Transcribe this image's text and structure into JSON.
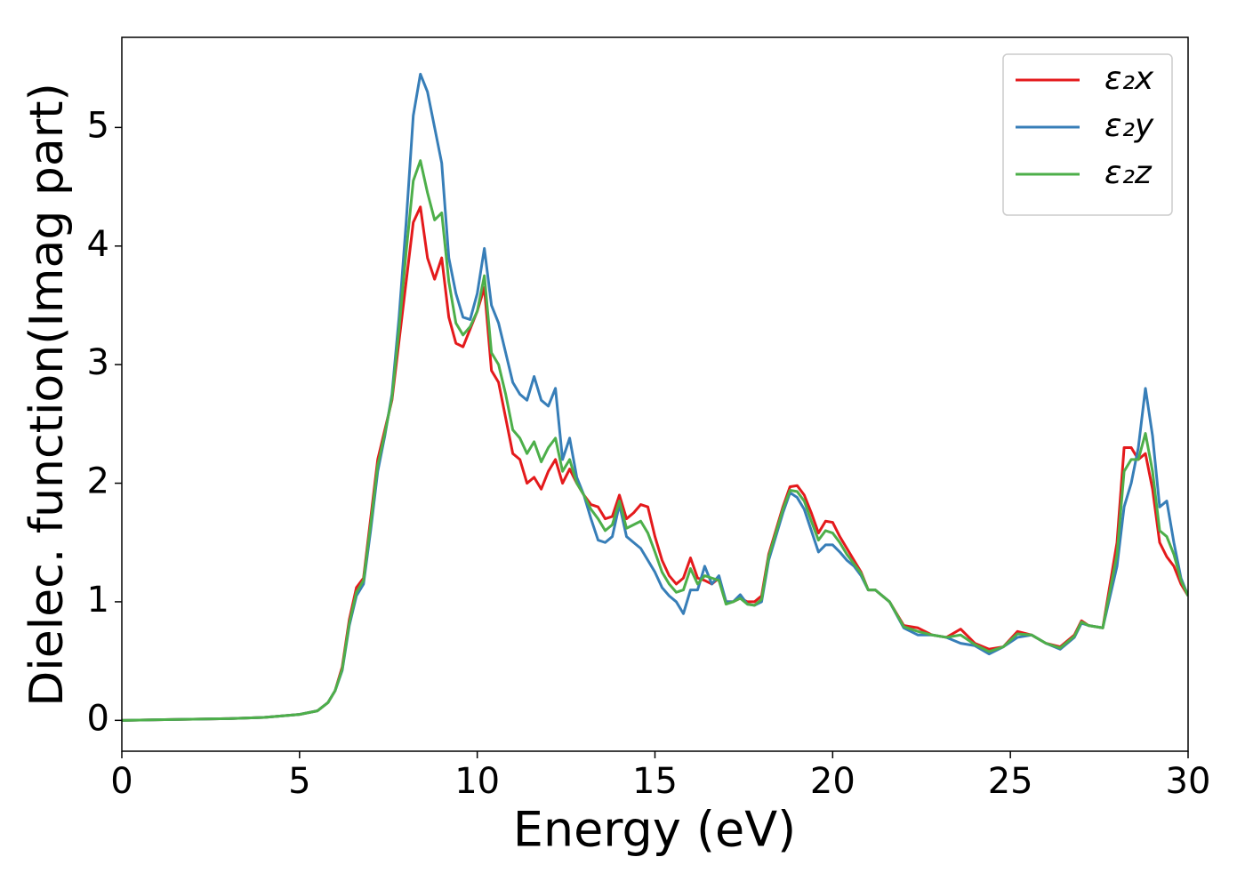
{
  "chart_data": {
    "type": "line",
    "xlabel": "Energy (eV)",
    "ylabel": "Dielec. function(Imag part)",
    "xlim": [
      0,
      30
    ],
    "xticks": [
      0,
      5,
      10,
      15,
      20,
      25,
      30
    ],
    "ylim": [
      -0.26,
      5.76
    ],
    "yticks": [
      0,
      1,
      2,
      3,
      4,
      5
    ],
    "grid": false,
    "legend": "upper right",
    "x": [
      0,
      1,
      2,
      3,
      4,
      5,
      5.5,
      5.8,
      6.0,
      6.2,
      6.4,
      6.6,
      6.8,
      7.0,
      7.2,
      7.4,
      7.6,
      7.8,
      8.0,
      8.2,
      8.4,
      8.6,
      8.8,
      9.0,
      9.2,
      9.4,
      9.6,
      9.8,
      10.0,
      10.2,
      10.4,
      10.6,
      10.8,
      11.0,
      11.2,
      11.4,
      11.6,
      11.8,
      12.0,
      12.2,
      12.4,
      12.6,
      12.8,
      13.0,
      13.2,
      13.4,
      13.6,
      13.8,
      14.0,
      14.2,
      14.4,
      14.6,
      14.8,
      15.0,
      15.2,
      15.4,
      15.6,
      15.8,
      16.0,
      16.2,
      16.4,
      16.6,
      16.8,
      17.0,
      17.2,
      17.4,
      17.6,
      17.8,
      18.0,
      18.2,
      18.4,
      18.6,
      18.8,
      19.0,
      19.2,
      19.4,
      19.6,
      19.8,
      20.0,
      20.2,
      20.4,
      20.6,
      20.8,
      21.0,
      21.2,
      21.6,
      22.0,
      22.4,
      22.8,
      23.2,
      23.6,
      24.0,
      24.4,
      24.8,
      25.2,
      25.6,
      26.0,
      26.4,
      26.8,
      27.0,
      27.2,
      27.6,
      28.0,
      28.2,
      28.4,
      28.6,
      28.8,
      29.0,
      29.2,
      29.4,
      29.6,
      29.8,
      30.0
    ],
    "series": [
      {
        "name": "ε₂x",
        "color": "#e41a1c",
        "values": [
          0,
          0.005,
          0.01,
          0.015,
          0.025,
          0.05,
          0.08,
          0.15,
          0.25,
          0.45,
          0.85,
          1.12,
          1.2,
          1.7,
          2.2,
          2.45,
          2.7,
          3.2,
          3.7,
          4.2,
          4.33,
          3.9,
          3.72,
          3.9,
          3.4,
          3.18,
          3.15,
          3.3,
          3.45,
          3.65,
          2.95,
          2.85,
          2.55,
          2.25,
          2.2,
          2.0,
          2.05,
          1.95,
          2.1,
          2.2,
          2.0,
          2.12,
          2.0,
          1.9,
          1.82,
          1.8,
          1.7,
          1.72,
          1.9,
          1.7,
          1.75,
          1.82,
          1.8,
          1.55,
          1.35,
          1.22,
          1.15,
          1.2,
          1.37,
          1.2,
          1.18,
          1.15,
          1.2,
          1.0,
          1.0,
          1.03,
          1.0,
          1.0,
          1.05,
          1.4,
          1.6,
          1.8,
          1.97,
          1.98,
          1.9,
          1.75,
          1.58,
          1.68,
          1.67,
          1.55,
          1.45,
          1.35,
          1.25,
          1.1,
          1.1,
          1.0,
          0.8,
          0.78,
          0.72,
          0.7,
          0.77,
          0.65,
          0.6,
          0.62,
          0.75,
          0.72,
          0.65,
          0.62,
          0.72,
          0.84,
          0.8,
          0.78,
          1.5,
          2.3,
          2.3,
          2.2,
          2.25,
          1.95,
          1.5,
          1.38,
          1.3,
          1.15,
          1.05
        ]
      },
      {
        "name": "ε₂y",
        "color": "#377eb8",
        "values": [
          0,
          0.005,
          0.01,
          0.015,
          0.025,
          0.05,
          0.08,
          0.15,
          0.25,
          0.42,
          0.8,
          1.05,
          1.15,
          1.6,
          2.1,
          2.4,
          2.75,
          3.4,
          4.2,
          5.1,
          5.45,
          5.3,
          5.0,
          4.7,
          3.9,
          3.6,
          3.4,
          3.38,
          3.6,
          3.98,
          3.5,
          3.35,
          3.1,
          2.85,
          2.75,
          2.7,
          2.9,
          2.7,
          2.65,
          2.8,
          2.2,
          2.38,
          2.05,
          1.9,
          1.7,
          1.52,
          1.5,
          1.55,
          1.82,
          1.55,
          1.5,
          1.45,
          1.35,
          1.25,
          1.12,
          1.05,
          1.0,
          0.9,
          1.1,
          1.1,
          1.3,
          1.15,
          1.22,
          1.0,
          1.0,
          1.06,
          0.98,
          0.97,
          1.0,
          1.35,
          1.55,
          1.75,
          1.92,
          1.88,
          1.78,
          1.6,
          1.42,
          1.48,
          1.48,
          1.42,
          1.35,
          1.3,
          1.22,
          1.1,
          1.1,
          1.0,
          0.78,
          0.72,
          0.72,
          0.7,
          0.65,
          0.63,
          0.56,
          0.62,
          0.7,
          0.72,
          0.65,
          0.6,
          0.7,
          0.82,
          0.8,
          0.78,
          1.3,
          1.8,
          2.0,
          2.3,
          2.8,
          2.4,
          1.8,
          1.85,
          1.5,
          1.2,
          1.05
        ]
      },
      {
        "name": "ε₂z",
        "color": "#4daf4a",
        "values": [
          0,
          0.005,
          0.01,
          0.015,
          0.025,
          0.05,
          0.08,
          0.15,
          0.25,
          0.43,
          0.82,
          1.08,
          1.18,
          1.65,
          2.15,
          2.42,
          2.72,
          3.3,
          3.95,
          4.55,
          4.72,
          4.45,
          4.22,
          4.28,
          3.7,
          3.35,
          3.25,
          3.32,
          3.45,
          3.75,
          3.1,
          3.0,
          2.75,
          2.45,
          2.38,
          2.25,
          2.35,
          2.18,
          2.3,
          2.38,
          2.1,
          2.2,
          2.0,
          1.9,
          1.78,
          1.7,
          1.6,
          1.65,
          1.85,
          1.62,
          1.65,
          1.68,
          1.58,
          1.42,
          1.25,
          1.15,
          1.08,
          1.1,
          1.28,
          1.15,
          1.22,
          1.2,
          1.18,
          0.98,
          1.0,
          1.03,
          0.98,
          0.97,
          1.02,
          1.38,
          1.58,
          1.78,
          1.94,
          1.93,
          1.85,
          1.68,
          1.52,
          1.6,
          1.58,
          1.5,
          1.4,
          1.32,
          1.24,
          1.1,
          1.1,
          1.0,
          0.79,
          0.75,
          0.72,
          0.7,
          0.72,
          0.64,
          0.58,
          0.62,
          0.73,
          0.72,
          0.65,
          0.61,
          0.71,
          0.83,
          0.8,
          0.78,
          1.4,
          2.1,
          2.2,
          2.2,
          2.42,
          2.1,
          1.6,
          1.55,
          1.4,
          1.18,
          1.05
        ]
      }
    ]
  }
}
